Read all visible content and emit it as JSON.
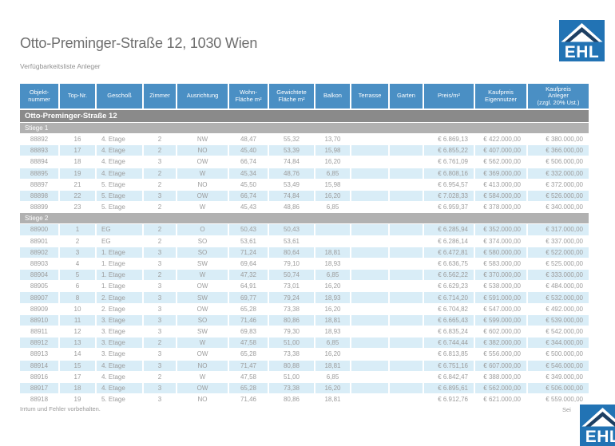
{
  "page": {
    "title": "Otto-Preminger-Straße 12, 1030 Wien",
    "subtitle": "Verfügbarkeitsliste Anleger",
    "footer_note": "Irrtum und Fehler vorbehalten.",
    "page_indicator": "Sei"
  },
  "logo": {
    "text": "EHL"
  },
  "colors": {
    "header_blue": "#4a8fc4",
    "row_stripe_blue": "#d9edf7",
    "group_bar_gray": "#8a8a8a",
    "section_bar_gray": "#b1b1b1",
    "logo_blue": "#2273b4",
    "logo_roof_navy": "#1d3f63"
  },
  "table": {
    "columns": [
      "Objekt-\nnummer",
      "Top-Nr.",
      "Geschoß",
      "Zimmer",
      "Ausrichtung",
      "Wohn-\nFläche m²",
      "Gewichtete\nFläche m²",
      "Balkon",
      "Terrasse",
      "Garten",
      "Preis/m²",
      "Kaufpreis\nEigennutzer",
      "Kaufpreis\nAnleger\n(zzgl. 20% Ust.)"
    ],
    "group_header": "Otto-Preminger-Straße 12",
    "sections": [
      {
        "label": "Stiege 1",
        "rows": [
          [
            "88892",
            "16",
            "4. Etage",
            "2",
            "NW",
            "48,47",
            "55,32",
            "13,70",
            "",
            "",
            "€ 6.869,13",
            "€ 422.000,00",
            "€ 380.000,00"
          ],
          [
            "88893",
            "17",
            "4. Etage",
            "2",
            "NO",
            "45,40",
            "53,39",
            "15,98",
            "",
            "",
            "€ 6.855,22",
            "€ 407.000,00",
            "€ 366.000,00"
          ],
          [
            "88894",
            "18",
            "4. Etage",
            "3",
            "OW",
            "66,74",
            "74,84",
            "16,20",
            "",
            "",
            "€ 6.761,09",
            "€ 562.000,00",
            "€ 506.000,00"
          ],
          [
            "88895",
            "19",
            "4. Etage",
            "2",
            "W",
            "45,34",
            "48,76",
            "6,85",
            "",
            "",
            "€ 6.808,16",
            "€ 369.000,00",
            "€ 332.000,00"
          ],
          [
            "88897",
            "21",
            "5. Etage",
            "2",
            "NO",
            "45,50",
            "53,49",
            "15,98",
            "",
            "",
            "€ 6.954,57",
            "€ 413.000,00",
            "€ 372.000,00"
          ],
          [
            "88898",
            "22",
            "5. Etage",
            "3",
            "OW",
            "66,74",
            "74,84",
            "16,20",
            "",
            "",
            "€ 7.028,33",
            "€ 584.000,00",
            "€ 526.000,00"
          ],
          [
            "88899",
            "23",
            "5. Etage",
            "2",
            "W",
            "45,43",
            "48,86",
            "6,85",
            "",
            "",
            "€ 6.959,37",
            "€ 378.000,00",
            "€ 340.000,00"
          ]
        ]
      },
      {
        "label": "Stiege 2",
        "rows": [
          [
            "88900",
            "1",
            "EG",
            "2",
            "O",
            "50,43",
            "50,43",
            "",
            "",
            "",
            "€ 6.285,94",
            "€ 352.000,00",
            "€ 317.000,00"
          ],
          [
            "88901",
            "2",
            "EG",
            "2",
            "SO",
            "53,61",
            "53,61",
            "",
            "",
            "",
            "€ 6.286,14",
            "€ 374.000,00",
            "€ 337.000,00"
          ],
          [
            "88902",
            "3",
            "1. Etage",
            "3",
            "SO",
            "71,24",
            "80,64",
            "18,81",
            "",
            "",
            "€ 6.472,81",
            "€ 580.000,00",
            "€ 522.000,00"
          ],
          [
            "88903",
            "4",
            "1. Etage",
            "3",
            "SW",
            "69,64",
            "79,10",
            "18,93",
            "",
            "",
            "€ 6.636,75",
            "€ 583.000,00",
            "€ 525.000,00"
          ],
          [
            "88904",
            "5",
            "1. Etage",
            "2",
            "W",
            "47,32",
            "50,74",
            "6,85",
            "",
            "",
            "€ 6.562,22",
            "€ 370.000,00",
            "€ 333.000,00"
          ],
          [
            "88905",
            "6",
            "1. Etage",
            "3",
            "OW",
            "64,91",
            "73,01",
            "16,20",
            "",
            "",
            "€ 6.629,23",
            "€ 538.000,00",
            "€ 484.000,00"
          ],
          [
            "88907",
            "8",
            "2. Etage",
            "3",
            "SW",
            "69,77",
            "79,24",
            "18,93",
            "",
            "",
            "€ 6.714,20",
            "€ 591.000,00",
            "€ 532.000,00"
          ],
          [
            "88909",
            "10",
            "2. Etage",
            "3",
            "OW",
            "65,28",
            "73,38",
            "16,20",
            "",
            "",
            "€ 6.704,82",
            "€ 547.000,00",
            "€ 492.000,00"
          ],
          [
            "88910",
            "11",
            "3. Etage",
            "3",
            "SO",
            "71,46",
            "80,86",
            "18,81",
            "",
            "",
            "€ 6.665,43",
            "€ 599.000,00",
            "€ 539.000,00"
          ],
          [
            "88911",
            "12",
            "3. Etage",
            "3",
            "SW",
            "69,83",
            "79,30",
            "18,93",
            "",
            "",
            "€ 6.835,24",
            "€ 602.000,00",
            "€ 542.000,00"
          ],
          [
            "88912",
            "13",
            "3. Etage",
            "2",
            "W",
            "47,58",
            "51,00",
            "6,85",
            "",
            "",
            "€ 6.744,44",
            "€ 382.000,00",
            "€ 344.000,00"
          ],
          [
            "88913",
            "14",
            "3. Etage",
            "3",
            "OW",
            "65,28",
            "73,38",
            "16,20",
            "",
            "",
            "€ 6.813,85",
            "€ 556.000,00",
            "€ 500.000,00"
          ],
          [
            "88914",
            "15",
            "4. Etage",
            "3",
            "NO",
            "71,47",
            "80,88",
            "18,81",
            "",
            "",
            "€ 6.751,16",
            "€ 607.000,00",
            "€ 546.000,00"
          ],
          [
            "88916",
            "17",
            "4. Etage",
            "2",
            "W",
            "47,58",
            "51,00",
            "6,85",
            "",
            "",
            "€ 6.842,47",
            "€ 388.000,00",
            "€ 349.000,00"
          ],
          [
            "88917",
            "18",
            "4. Etage",
            "3",
            "OW",
            "65,28",
            "73,38",
            "16,20",
            "",
            "",
            "€ 6.895,61",
            "€ 562.000,00",
            "€ 506.000,00"
          ],
          [
            "88918",
            "19",
            "5. Etage",
            "3",
            "NO",
            "71,46",
            "80,86",
            "18,81",
            "",
            "",
            "€ 6.912,76",
            "€ 621.000,00",
            "€ 559.000,00"
          ]
        ]
      }
    ]
  }
}
